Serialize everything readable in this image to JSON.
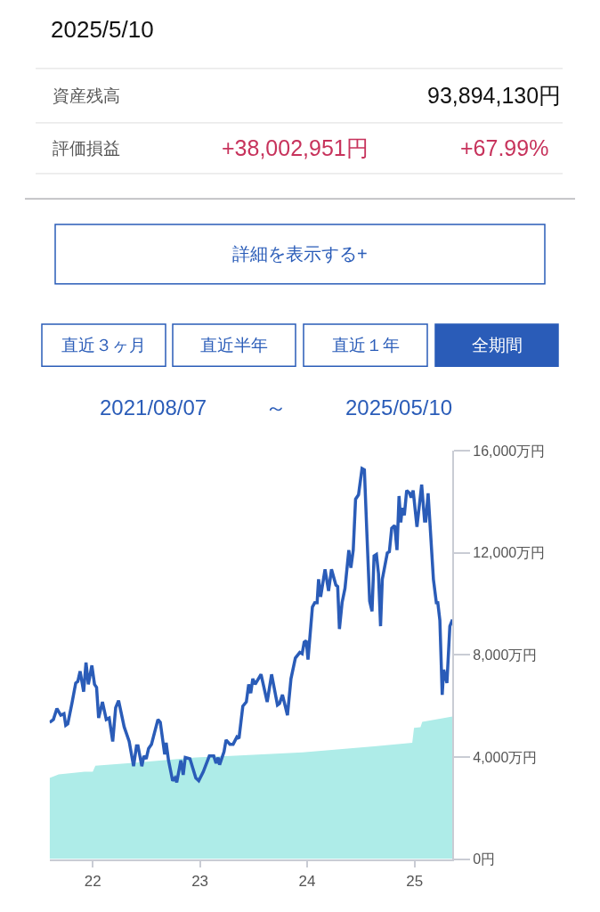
{
  "chart_data": {
    "type": "line",
    "title": "2025/5/10",
    "annotations": [
      "資産残高",
      "93,894,130円",
      "評価損益",
      "+38,002,951円",
      "+67.99%",
      "詳細を表示する+",
      "直近３ヶ月",
      "直近半年",
      "直近１年",
      "全期間",
      "2021/08/07",
      "～",
      "2025/05/10"
    ],
    "xlim": [
      "2021-08-07",
      "2025-05-10"
    ],
    "xticks": [
      {
        "value": "2022-01-01",
        "label": "22"
      },
      {
        "value": "2023-01-01",
        "label": "23"
      },
      {
        "value": "2024-01-01",
        "label": "24"
      },
      {
        "value": "2025-01-01",
        "label": "25"
      }
    ],
    "ylim": [
      0,
      16000
    ],
    "yticks": [
      {
        "value": 0,
        "label": "0円"
      },
      {
        "value": 4000,
        "label": "4,000万円"
      },
      {
        "value": 8000,
        "label": "8,000万円"
      },
      {
        "value": 12000,
        "label": "12,000万円"
      },
      {
        "value": 16000,
        "label": "16,000万円"
      }
    ],
    "line_style": "solid",
    "series": [
      {
        "type": "area",
        "color": "#aeece8",
        "x": [
          "2021-08-07",
          "2021-09-07",
          "2021-12-04",
          "2022-01-01",
          "2022-01-10",
          "2022-05-20",
          "2022-12-18",
          "2023-12-17",
          "2024-08-16",
          "2024-12-24",
          "2024-12-30",
          "2025-01-21",
          "2025-01-27",
          "2025-05-10"
        ],
        "values": [
          3180,
          3320,
          3420,
          3420,
          3660,
          3770,
          3980,
          4180,
          4420,
          4560,
          5140,
          5170,
          5380,
          5590
        ]
      },
      {
        "color": "#2a5cb8",
        "x": [
          "2021-08-07",
          "2021-08-20",
          "2021-09-01",
          "2021-09-14",
          "2021-09-25",
          "2021-10-01",
          "2021-10-08",
          "2021-10-22",
          "2021-11-04",
          "2021-11-11",
          "2021-11-19",
          "2021-12-01",
          "2021-12-09",
          "2021-12-17",
          "2021-12-29",
          "2022-01-07",
          "2022-01-14",
          "2022-01-21",
          "2022-02-03",
          "2022-02-16",
          "2022-02-26",
          "2022-03-10",
          "2022-03-20",
          "2022-03-30",
          "2022-04-18",
          "2022-05-05",
          "2022-05-20",
          "2022-05-30",
          "2022-06-04",
          "2022-06-17",
          "2022-06-24",
          "2022-07-02",
          "2022-07-10",
          "2022-07-20",
          "2022-08-11",
          "2022-08-19",
          "2022-09-03",
          "2022-09-08",
          "2022-09-16",
          "2022-09-30",
          "2022-10-08",
          "2022-10-14",
          "2022-10-28",
          "2022-11-05",
          "2022-11-12",
          "2022-11-28",
          "2022-12-18",
          "2022-12-28",
          "2023-01-12",
          "2023-02-02",
          "2023-02-17",
          "2023-02-25",
          "2023-03-04",
          "2023-03-09",
          "2023-03-24",
          "2023-03-31",
          "2023-04-13",
          "2023-04-24",
          "2023-05-07",
          "2023-05-14",
          "2023-05-27",
          "2023-06-08",
          "2023-06-16",
          "2023-06-23",
          "2023-06-30",
          "2023-07-08",
          "2023-07-28",
          "2023-08-18",
          "2023-09-02",
          "2023-09-22",
          "2023-09-29",
          "2023-10-09",
          "2023-10-26",
          "2023-11-07",
          "2023-11-22",
          "2023-12-07",
          "2023-12-15",
          "2023-12-22",
          "2023-12-29",
          "2024-01-04",
          "2024-01-19",
          "2024-01-27",
          "2024-02-04",
          "2024-02-09",
          "2024-02-16",
          "2024-03-02",
          "2024-03-14",
          "2024-03-24",
          "2024-04-08",
          "2024-04-14",
          "2024-04-20",
          "2024-04-29",
          "2024-05-09",
          "2024-05-22",
          "2024-05-29",
          "2024-06-06",
          "2024-06-14",
          "2024-06-24",
          "2024-07-06",
          "2024-07-14",
          "2024-07-22",
          "2024-08-01",
          "2024-08-09",
          "2024-08-16",
          "2024-08-24",
          "2024-08-31",
          "2024-09-07",
          "2024-09-13",
          "2024-09-30",
          "2024-10-07",
          "2024-10-15",
          "2024-10-25",
          "2024-11-02",
          "2024-11-09",
          "2024-11-15",
          "2024-11-20",
          "2024-11-27",
          "2024-12-05",
          "2024-12-15",
          "2024-12-20",
          "2024-12-27",
          "2025-01-09",
          "2025-01-25",
          "2025-02-04",
          "2025-02-08",
          "2025-02-16",
          "2025-03-06",
          "2025-03-16",
          "2025-03-21",
          "2025-03-28",
          "2025-04-05",
          "2025-04-10",
          "2025-04-21",
          "2025-05-01",
          "2025-05-10"
        ],
        "values": [
          5360,
          5470,
          5900,
          5640,
          5700,
          5240,
          5300,
          6100,
          6900,
          6960,
          7360,
          6560,
          7700,
          6850,
          7590,
          6850,
          6730,
          5530,
          6160,
          5470,
          5530,
          4610,
          5930,
          6210,
          5180,
          4610,
          3640,
          4440,
          4440,
          3640,
          4040,
          3930,
          4330,
          4500,
          5470,
          5360,
          4100,
          4560,
          3870,
          3070,
          3180,
          3010,
          3870,
          3300,
          3980,
          3930,
          3180,
          3070,
          3410,
          4040,
          4040,
          3760,
          3980,
          3700,
          4210,
          4670,
          4500,
          4500,
          4790,
          4730,
          5990,
          6160,
          6850,
          6500,
          7070,
          6850,
          7240,
          6160,
          7240,
          6040,
          6100,
          6440,
          5640,
          7070,
          7880,
          8100,
          8050,
          8500,
          8560,
          7820,
          9880,
          10050,
          10050,
          10970,
          10280,
          11360,
          10510,
          11360,
          10740,
          10680,
          9020,
          10050,
          10620,
          12110,
          11420,
          12110,
          14110,
          14280,
          15310,
          15260,
          12910,
          10110,
          9710,
          11880,
          11940,
          11190,
          9130,
          10970,
          12000,
          12050,
          12970,
          13080,
          12110,
          14230,
          13200,
          13770,
          13480,
          14450,
          14340,
          14170,
          14450,
          13020,
          14680,
          13250,
          13250,
          14340,
          10970,
          10050,
          10050,
          9360,
          6440,
          7420,
          6900,
          9130,
          9390
        ]
      }
    ]
  }
}
